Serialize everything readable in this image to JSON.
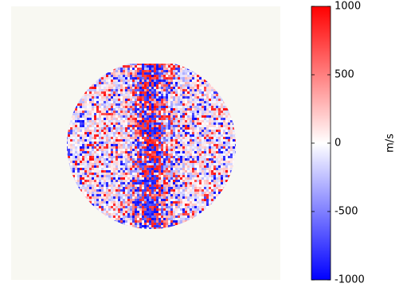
{
  "chart_data": {
    "type": "image",
    "colorbar_label": "m/s",
    "clim": [
      -1000,
      1000
    ],
    "cticks": [
      -1000,
      -500,
      0,
      500,
      1000
    ],
    "colormap": [
      "#0000ff",
      "#ffffff",
      "#ff0000"
    ]
  }
}
